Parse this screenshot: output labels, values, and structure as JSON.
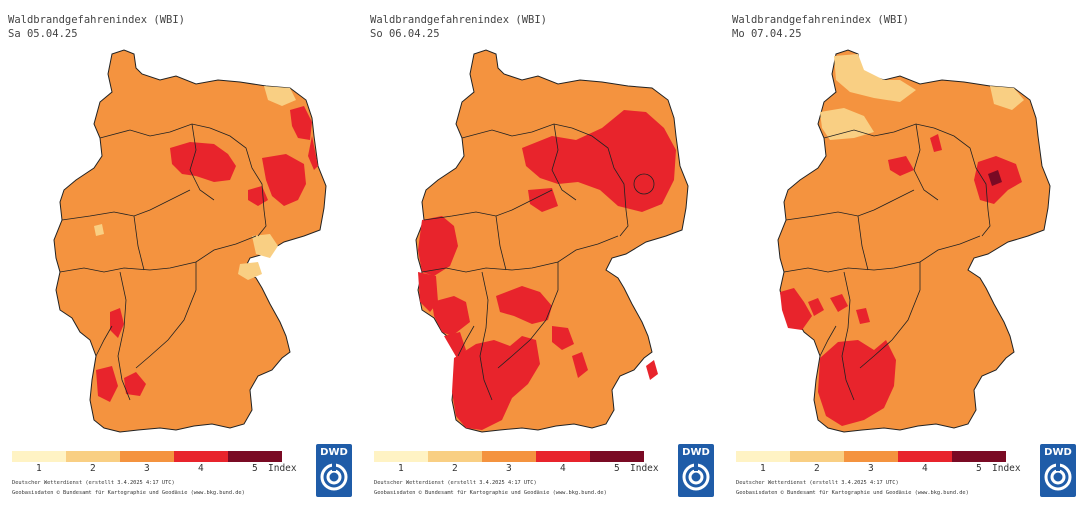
{
  "panels": [
    {
      "title": "Waldbrandgefahrenindex (WBI)",
      "date": "Sa 05.04.25"
    },
    {
      "title": "Waldbrandgefahrenindex (WBI)",
      "date": "So 06.04.25"
    },
    {
      "title": "Waldbrandgefahrenindex (WBI)",
      "date": "Mo 07.04.25"
    }
  ],
  "legend": {
    "labels": [
      "1",
      "2",
      "3",
      "4",
      "5"
    ],
    "unit": "Index",
    "colors": [
      "#fff3c4",
      "#f9cf83",
      "#f4933f",
      "#e8242c",
      "#7a0a24"
    ]
  },
  "footer": {
    "line1": "Deutscher Wetterdienst (erstellt 3.4.2025 4:17 UTC)",
    "line2": "Geobasisdaten © Bundesamt für Kartographie und Geodäsie (www.bkg.bund.de)"
  },
  "logo": {
    "text": "DWD",
    "color": "#1f5ca8"
  },
  "map_colors": {
    "base": "#f4933f",
    "light": "#f9cf83",
    "red": "#e8242c",
    "dark": "#7a0a24",
    "border": "#222222"
  }
}
